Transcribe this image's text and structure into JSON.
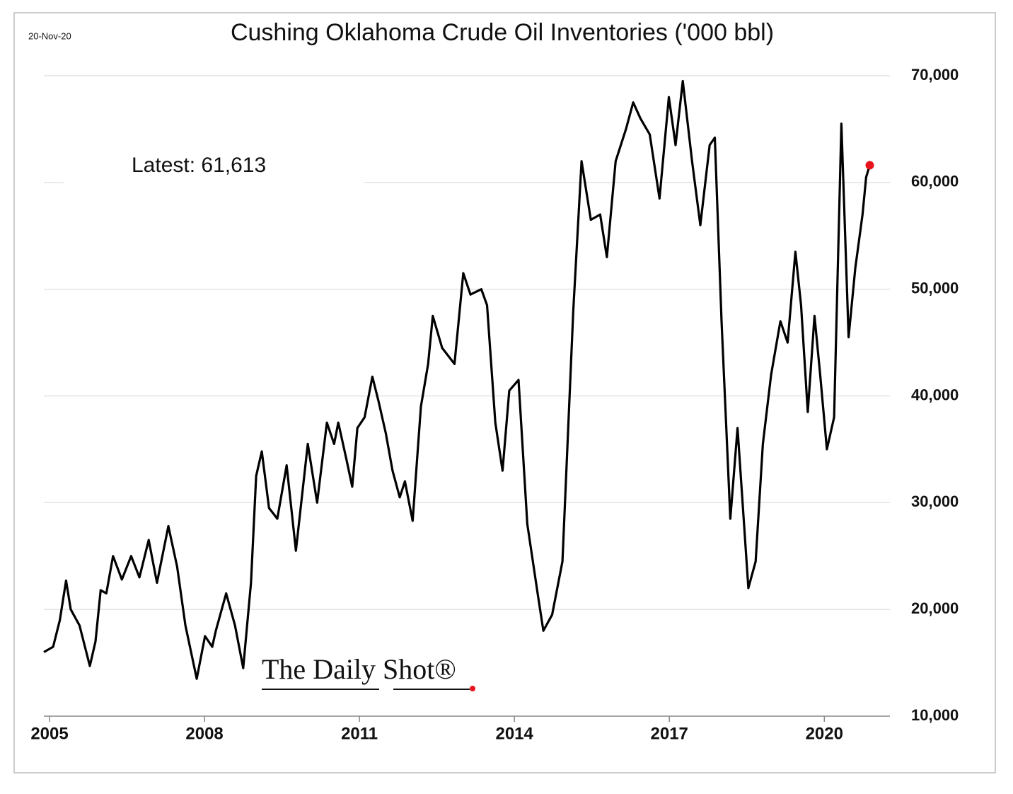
{
  "chart_data": {
    "type": "line",
    "title": "Cushing Oklahoma Crude Oil Inventories ('000 bbl)",
    "date": "20-Nov-20",
    "annotation": "Latest:  61,613",
    "watermark": "The Daily Shot®",
    "x": [
      2004.89,
      2005.07,
      2005.2,
      2005.32,
      2005.41,
      2005.58,
      2005.78,
      2005.89,
      2005.99,
      2006.1,
      2006.23,
      2006.4,
      2006.58,
      2006.74,
      2006.92,
      2007.08,
      2007.3,
      2007.47,
      2007.63,
      2007.85,
      2008.01,
      2008.15,
      2008.22,
      2008.42,
      2008.59,
      2008.75,
      2008.9,
      2009.0,
      2009.11,
      2009.25,
      2009.41,
      2009.59,
      2009.77,
      2010.0,
      2010.18,
      2010.37,
      2010.51,
      2010.59,
      2010.75,
      2010.86,
      2010.96,
      2011.1,
      2011.25,
      2011.37,
      2011.51,
      2011.64,
      2011.78,
      2011.88,
      2012.03,
      2012.19,
      2012.33,
      2012.42,
      2012.6,
      2012.84,
      2013.01,
      2013.15,
      2013.36,
      2013.47,
      2013.63,
      2013.77,
      2013.9,
      2014.08,
      2014.25,
      2014.45,
      2014.56,
      2014.73,
      2014.93,
      2015.14,
      2015.3,
      2015.48,
      2015.66,
      2015.79,
      2015.96,
      2016.16,
      2016.3,
      2016.44,
      2016.62,
      2016.81,
      2016.99,
      2017.12,
      2017.26,
      2017.44,
      2017.6,
      2017.78,
      2017.88,
      2018.01,
      2018.18,
      2018.32,
      2018.53,
      2018.67,
      2018.81,
      2018.97,
      2019.15,
      2019.29,
      2019.44,
      2019.55,
      2019.68,
      2019.81,
      2019.92,
      2020.05,
      2020.19,
      2020.33,
      2020.47,
      2020.6,
      2020.74,
      2020.81,
      2020.88
    ],
    "series": [
      {
        "name": "Cushing inventories",
        "color": "#000000",
        "values": [
          16000,
          16500,
          19000,
          22700,
          20000,
          18500,
          14700,
          17000,
          21800,
          21500,
          25000,
          22800,
          25000,
          23000,
          26500,
          22500,
          27800,
          24000,
          18500,
          13500,
          17500,
          16500,
          18000,
          21500,
          18500,
          14500,
          22500,
          32500,
          34800,
          29500,
          28500,
          33500,
          25500,
          35500,
          30000,
          37500,
          35500,
          37500,
          34000,
          31500,
          37000,
          38000,
          41800,
          39500,
          36500,
          33000,
          30500,
          32000,
          28300,
          39000,
          43000,
          47500,
          44500,
          43000,
          51500,
          49500,
          50000,
          48500,
          37500,
          33000,
          40500,
          41500,
          28000,
          21500,
          18000,
          19500,
          24500,
          48000,
          62000,
          56500,
          57000,
          53000,
          62000,
          65000,
          67500,
          66000,
          64500,
          58500,
          68000,
          63500,
          69500,
          62000,
          56000,
          63500,
          64200,
          47000,
          28500,
          37000,
          22000,
          24500,
          35500,
          42000,
          47000,
          45000,
          53500,
          48500,
          38500,
          47500,
          42000,
          35000,
          38000,
          65500,
          45500,
          52000,
          57000,
          60500,
          61613
        ]
      }
    ],
    "latest_color": "#e8121b",
    "xlim": [
      2004.89,
      2021.27
    ],
    "xticks": [
      2005,
      2008,
      2011,
      2014,
      2017,
      2020
    ],
    "ylim": [
      10000,
      70000
    ],
    "yticks": [
      {
        "value": 10000,
        "label": "10,000"
      },
      {
        "value": 20000,
        "label": "20,000"
      },
      {
        "value": 30000,
        "label": "30,000"
      },
      {
        "value": 40000,
        "label": "40,000"
      },
      {
        "value": 50000,
        "label": "50,000"
      },
      {
        "value": 60000,
        "label": "60,000"
      },
      {
        "value": 70000,
        "label": "70,000"
      }
    ],
    "grid": true
  }
}
